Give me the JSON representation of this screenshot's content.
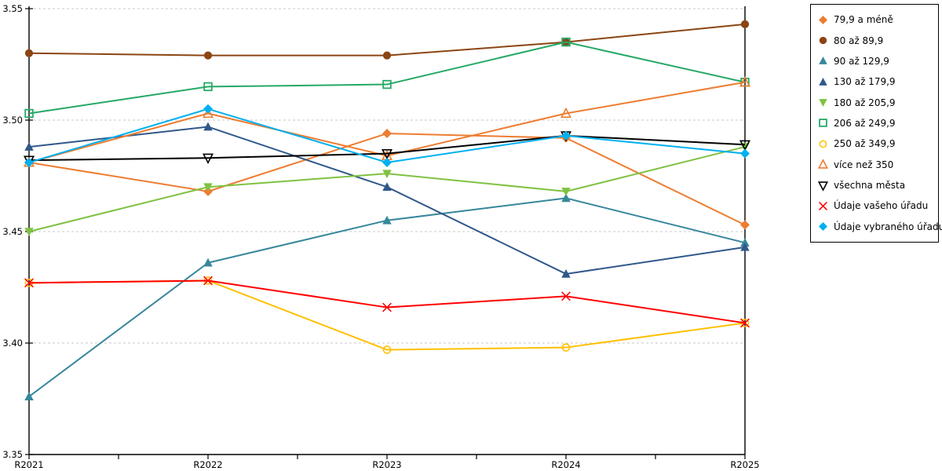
{
  "chart_data": {
    "type": "line",
    "title": "",
    "xlabel": "",
    "ylabel": "",
    "legend_position": "right",
    "grid": "horizontal-dashed",
    "categories": [
      "R2021",
      "R2022",
      "R2023",
      "R2024",
      "R2025"
    ],
    "y_axis": {
      "min": 3.35,
      "max": 3.55,
      "tick_step": 0.05,
      "tick_labels": [
        "3.55",
        "3.50",
        "3.45",
        "3.40",
        "3.35"
      ]
    },
    "series": [
      {
        "name": "79,9 a méně",
        "color": "#ED7D31",
        "marker": "diamond-filled",
        "values": [
          3.481,
          3.468,
          3.494,
          3.492,
          3.453
        ]
      },
      {
        "name": "80 až 89,9",
        "color": "#8B4513",
        "marker": "circle-filled",
        "values": [
          3.53,
          3.529,
          3.529,
          3.535,
          3.543
        ]
      },
      {
        "name": "90 až 129,9",
        "color": "#37879B",
        "marker": "triangle-up-filled",
        "values": [
          3.376,
          3.436,
          3.455,
          3.465,
          3.445
        ]
      },
      {
        "name": "130 až 179,9",
        "color": "#30588A",
        "marker": "triangle-up-filled",
        "values": [
          3.488,
          3.497,
          3.47,
          3.431,
          3.443
        ]
      },
      {
        "name": "180 až 205,9",
        "color": "#7FC241",
        "marker": "triangle-down-filled",
        "values": [
          3.45,
          3.47,
          3.476,
          3.468,
          3.488
        ]
      },
      {
        "name": "206 až 249,9",
        "color": "#25A966",
        "marker": "square-open",
        "values": [
          3.503,
          3.515,
          3.516,
          3.535,
          3.517
        ]
      },
      {
        "name": "250 až 349,9",
        "color": "#FFC000",
        "marker": "circle-open",
        "values": [
          3.427,
          3.428,
          3.397,
          3.398,
          3.409
        ]
      },
      {
        "name": "více než 350",
        "color": "#ED7D31",
        "marker": "triangle-up-open",
        "values": [
          3.481,
          3.503,
          3.484,
          3.503,
          3.517
        ]
      },
      {
        "name": "všechna města",
        "color": "#000000",
        "marker": "triangle-down-open",
        "values": [
          3.482,
          3.483,
          3.485,
          3.493,
          3.489
        ]
      },
      {
        "name": "Údaje vašeho úřadu",
        "color": "#FF0000",
        "marker": "x",
        "values": [
          3.427,
          3.428,
          3.416,
          3.421,
          3.409
        ]
      },
      {
        "name": "Údaje vybraného úřadu",
        "color": "#00B0F0",
        "marker": "diamond-filled",
        "values": [
          3.481,
          3.505,
          3.481,
          3.493,
          3.485
        ]
      }
    ]
  }
}
